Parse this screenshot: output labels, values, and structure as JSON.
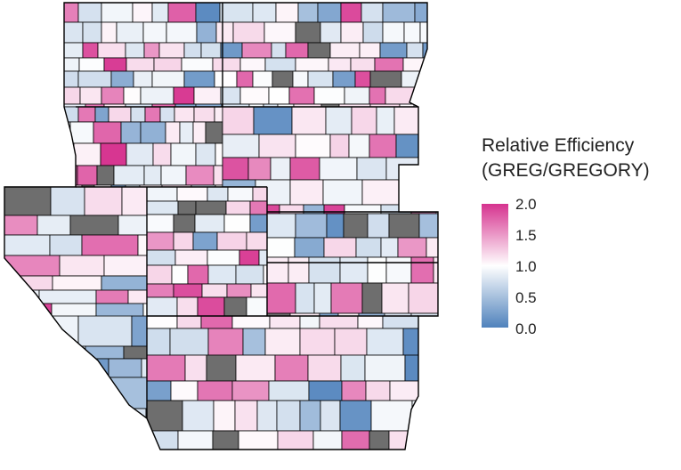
{
  "legend": {
    "title_line1": "Relative Efficiency",
    "title_line2": "(GREG/GREGORY)",
    "ticks": [
      "2.0",
      "1.5",
      "1.0",
      "0.5",
      "0.0"
    ],
    "range": [
      0.0,
      2.0
    ]
  },
  "colors": {
    "high": "#d6338f",
    "mid": "#ffffff",
    "low": "#4f82bc",
    "missing": "#6e6e6e",
    "border": "#000000"
  }
}
